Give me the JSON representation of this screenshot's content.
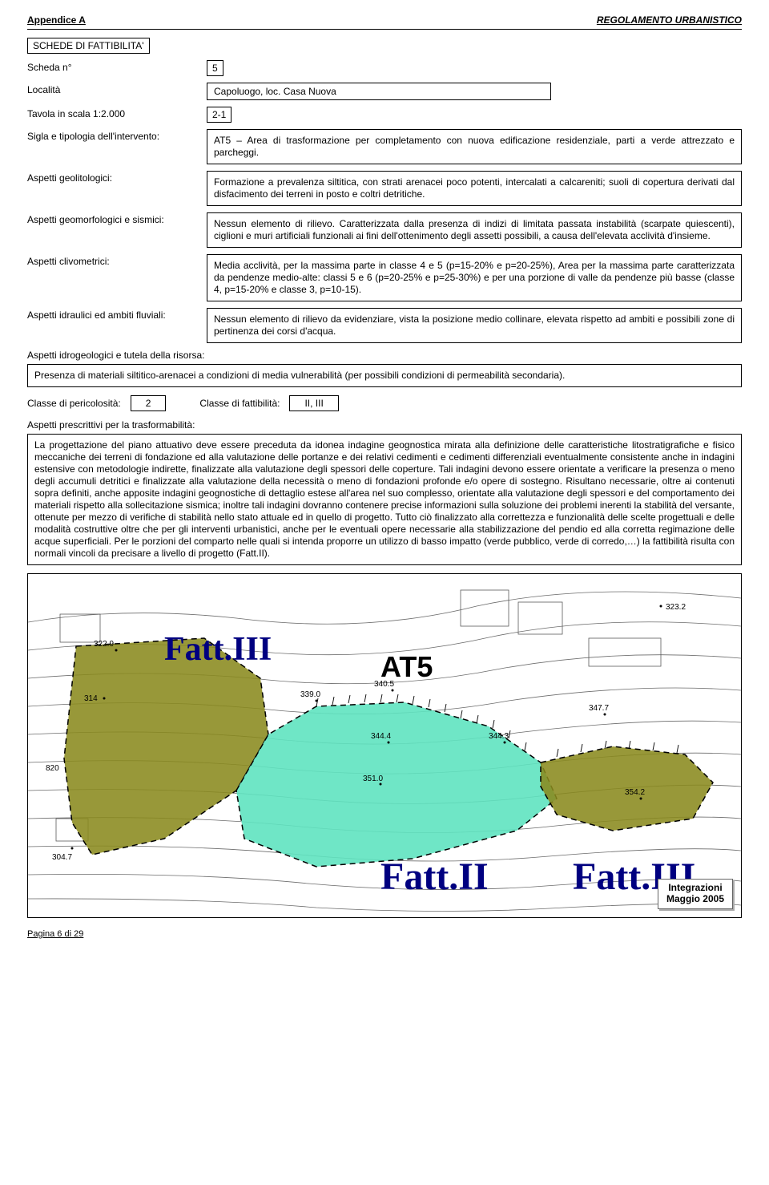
{
  "header": {
    "left": "Appendice A",
    "right": "REGOLAMENTO URBANISTICO"
  },
  "section_title": "SCHEDE DI FATTIBILITA'",
  "fields": {
    "scheda_n_label": "Scheda n°",
    "scheda_n_value": "5",
    "localita_label": "Località",
    "localita_value": "Capoluogo, loc. Casa Nuova",
    "tavola_label": "Tavola in scala 1:2.000",
    "tavola_value": "2-1",
    "sigla_label": "Sigla e tipologia dell'intervento:",
    "sigla_text": "AT5 – Area di trasformazione per completamento con nuova edificazione residenziale, parti a verde attrezzato e parcheggi.",
    "geolit_label": "Aspetti geolitologici:",
    "geolit_text": "Formazione a prevalenza siltitica, con strati arenacei poco potenti, intercalati a calcareniti; suoli di copertura derivati dal disfacimento dei terreni in posto e coltri detritiche.",
    "geomorf_label": "Aspetti geomorfologici e sismici:",
    "geomorf_text": "Nessun elemento di rilievo. Caratterizzata dalla presenza di indizi di limitata passata instabilità (scarpate quiescenti), ciglioni e muri artificiali funzionali ai fini dell'ottenimento degli assetti possibili, a causa dell'elevata acclività d'insieme.",
    "clivo_label": "Aspetti clivometrici:",
    "clivo_text": "Media acclività, per la massima parte in classe 4 e 5 (p=15-20% e p=20-25%), Area per la massima parte caratterizzata da pendenze medio-alte: classi 5 e 6 (p=20-25% e p=25-30%) e per una porzione di valle da pendenze più basse (classe 4, p=15-20% e classe 3, p=10-15).",
    "idraul_label": "Aspetti idraulici ed ambiti fluviali:",
    "idraul_text": "Nessun elemento di rilievo da evidenziare, vista la posizione medio collinare, elevata rispetto ad ambiti e possibili zone di pertinenza dei corsi d'acqua.",
    "idrogeo_label": "Aspetti idrogeologici e tutela della risorsa:",
    "idrogeo_text": "Presenza di materiali siltitico-arenacei a condizioni di media vulnerabilità (per possibili condizioni di permeabilità secondaria).",
    "pericolo_label": "Classe di pericolosità:",
    "pericolo_value": "2",
    "fattib_label": "Classe di fattibilità:",
    "fattib_value": "II, III",
    "prescr_label": "Aspetti prescrittivi per la trasformabilità:",
    "prescr_text": "La progettazione del piano attuativo deve essere preceduta da idonea indagine geognostica mirata alla definizione delle caratteristiche litostratigrafiche e fisico meccaniche dei terreni di fondazione ed alla valutazione delle portanze e dei relativi cedimenti e cedimenti differenziali eventualmente consistente anche in indagini estensive con metodologie indirette, finalizzate alla valutazione degli spessori delle coperture. Tali indagini devono essere orientate a verificare la presenza o meno degli accumuli detritici e finalizzate alla valutazione della necessità o meno di fondazioni profonde e/o opere di sostegno. Risultano necessarie, oltre ai contenuti sopra definiti, anche apposite indagini geognostiche di dettaglio estese all'area nel suo complesso, orientate alla valutazione degli spessori e del comportamento dei materiali rispetto alla sollecitazione sismica; inoltre tali indagini dovranno contenere precise informazioni sulla soluzione dei problemi inerenti la stabilità del versante, ottenute per mezzo di verifiche di stabilità nello stato attuale ed in quello di progetto. Tutto ciò finalizzato alla correttezza e funzionalità delle scelte progettuali e delle modalità costruttive oltre che per gli interventi urbanistici, anche per le eventuali opere necessarie alla stabilizzazione del pendio ed alla corretta regimazione delle acque superficiali. Per le porzioni del comparto nelle quali si intenda proporre un utilizzo di basso impatto (verde pubblico, verde di corredo,…) la fattibilità risulta con normali vincoli da precisare a livello di progetto (Fatt.II)."
  },
  "map": {
    "colors": {
      "fatt3_fill": "#8a8a1e",
      "fatt2_fill": "#5fe3c0",
      "contour": "#5a5a5a",
      "boundary": "#000",
      "label_blue": "#000080"
    },
    "labels": {
      "fatt3_left": "Fatt.III",
      "fatt2": "Fatt.II",
      "fatt3_right": "Fatt.III",
      "at5": "AT5"
    },
    "spot_heights": [
      "323.2",
      "322.9",
      "314",
      "339.0",
      "340.5",
      "344.4",
      "344.3",
      "347.7",
      "351.0",
      "354.2",
      "304.7",
      "820"
    ],
    "stamp": "Integrazioni\nMaggio 2005"
  },
  "footer": "Pagina 6 di 29"
}
